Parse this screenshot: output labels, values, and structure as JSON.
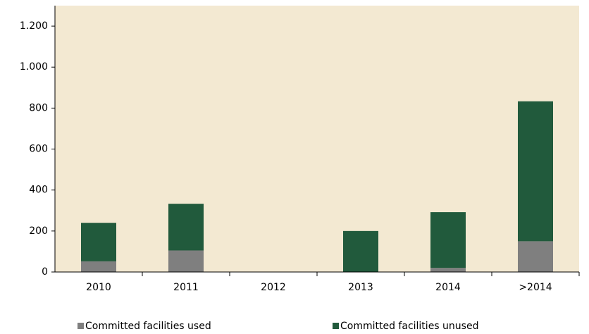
{
  "chart_data": {
    "type": "bar",
    "stacked": true,
    "categories": [
      "2010",
      "2011",
      "2012",
      "2013",
      "2014",
      ">2014"
    ],
    "series": [
      {
        "name": "Committed facilities used",
        "color": "#7f7f7f",
        "values": [
          52,
          105,
          0,
          0,
          20,
          150
        ]
      },
      {
        "name": "Committed facilities unused",
        "color": "#215a3c",
        "values": [
          188,
          228,
          0,
          200,
          272,
          683
        ]
      }
    ],
    "ylim": [
      0,
      1300
    ],
    "yticks": [
      0,
      200,
      400,
      600,
      800,
      {
        "value": 1000,
        "label": "1.000"
      },
      {
        "value": 1200,
        "label": "1.200"
      }
    ],
    "background": "#f3e9d2"
  }
}
